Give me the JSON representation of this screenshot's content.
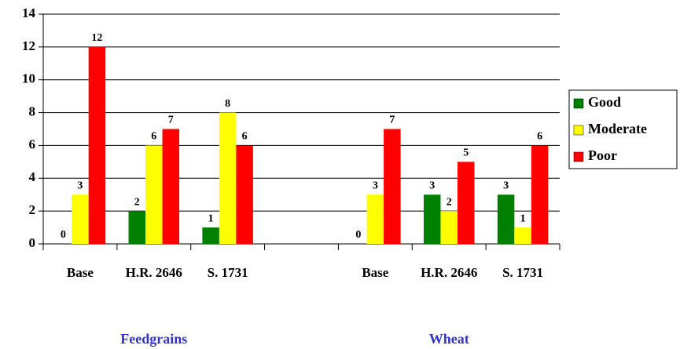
{
  "chart_data": {
    "type": "bar",
    "categories": [
      "Base",
      "H.R. 2646",
      "S. 1731",
      null,
      "Base",
      "H.R. 2646",
      "S. 1731"
    ],
    "group_labels": [
      "Feedgrains",
      "Wheat"
    ],
    "series": [
      {
        "name": "Good",
        "color": "#008000",
        "values": [
          0,
          2,
          1,
          null,
          0,
          3,
          3
        ]
      },
      {
        "name": "Moderate",
        "color": "#ffff00",
        "values": [
          3,
          6,
          8,
          null,
          3,
          2,
          1
        ]
      },
      {
        "name": "Poor",
        "color": "#ff0000",
        "values": [
          12,
          7,
          6,
          null,
          7,
          5,
          6
        ]
      }
    ],
    "ylim": [
      0,
      14
    ],
    "yticks": [
      0,
      2,
      4,
      6,
      8,
      10,
      12,
      14
    ],
    "grid": true,
    "legend": "right"
  }
}
